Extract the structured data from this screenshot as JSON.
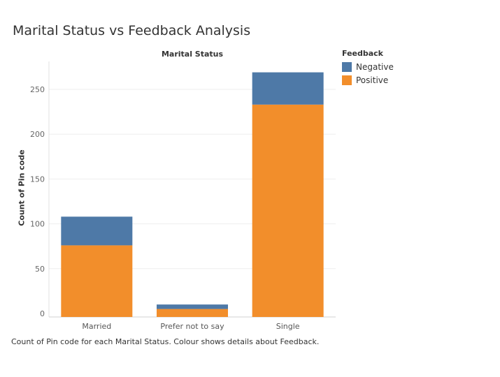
{
  "chart_data": {
    "type": "bar",
    "stacked": true,
    "title": "Marital Status vs Feedback Analysis",
    "column_header": "Marital Status",
    "xlabel": "",
    "ylabel": "Count of Pin code",
    "categories": [
      "Married",
      "Prefer not to say",
      "Single"
    ],
    "series": [
      {
        "name": "Positive",
        "color": "#f28e2b",
        "values": [
          76,
          5,
          233
        ]
      },
      {
        "name": "Negative",
        "color": "#4e79a7",
        "values": [
          32,
          5,
          36
        ]
      }
    ],
    "ylim": [
      0,
      270
    ],
    "yticks": [
      0,
      50,
      100,
      150,
      200,
      250
    ],
    "legend": {
      "title": "Feedback",
      "placement": "top-right",
      "items": [
        {
          "label": "Negative",
          "color": "#4e79a7"
        },
        {
          "label": "Positive",
          "color": "#f28e2b"
        }
      ]
    },
    "caption": "Count of Pin code for each Marital Status.  Colour shows details about Feedback."
  }
}
